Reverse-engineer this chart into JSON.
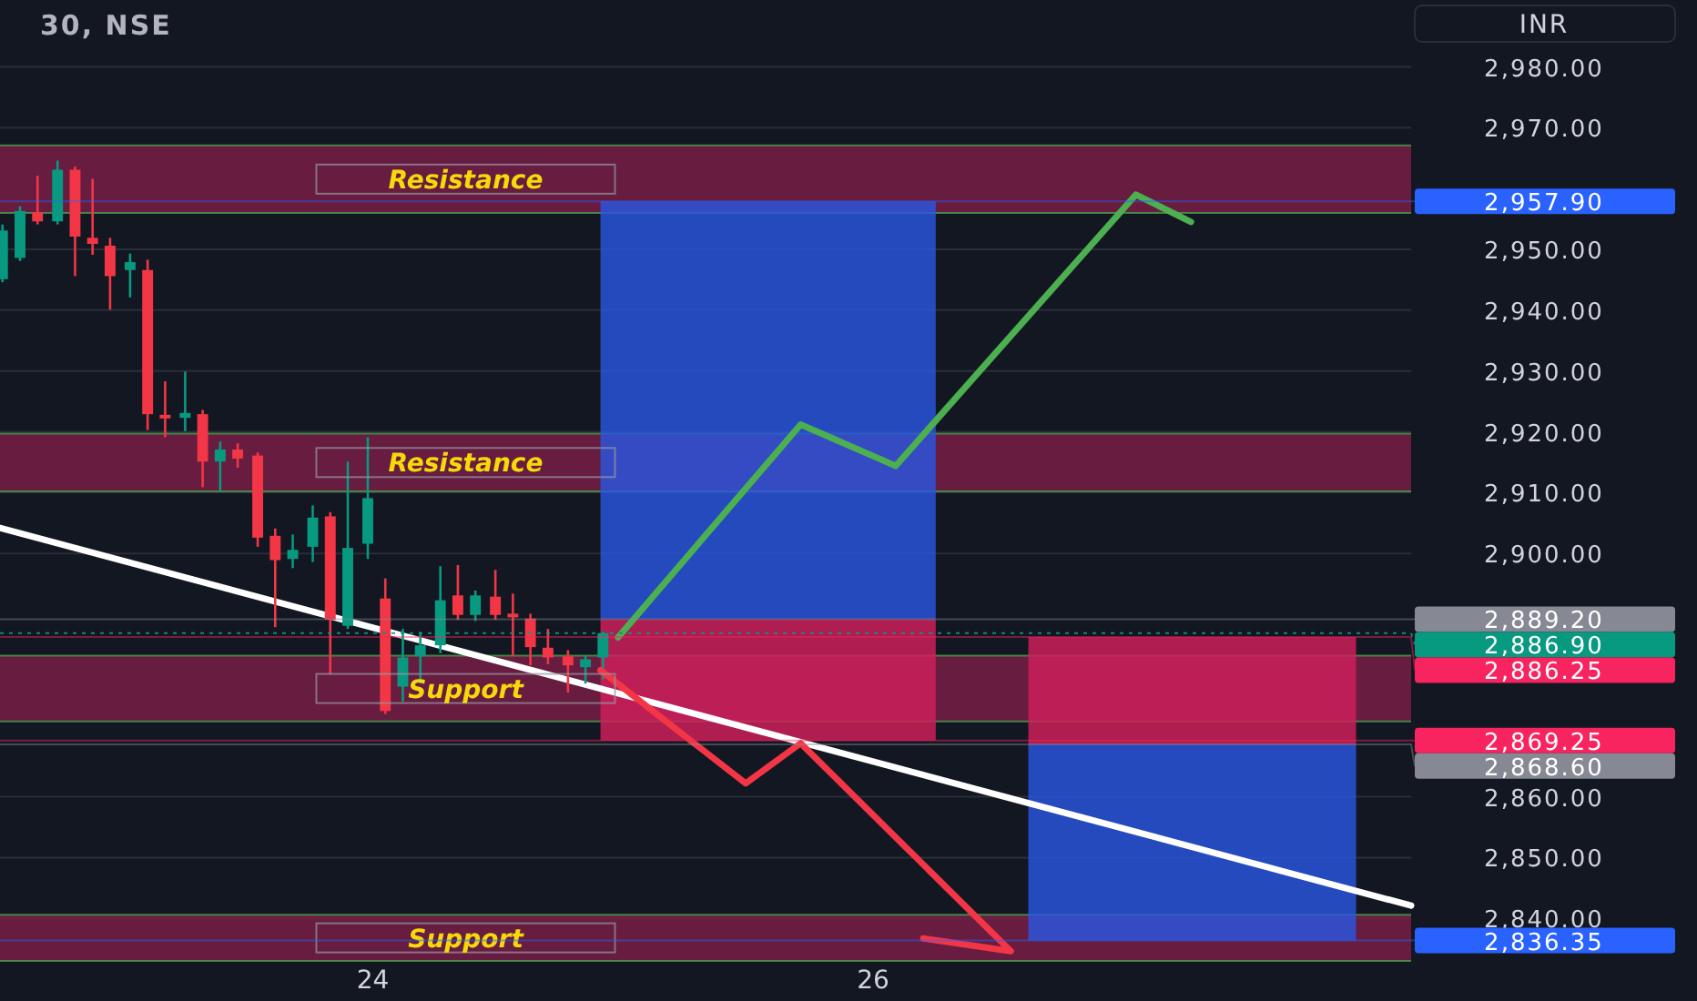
{
  "chart_data": {
    "type": "candlestick",
    "title": "30, NSE",
    "ylabel": "INR",
    "xlim": [
      22.51,
      28.15
    ],
    "xticks": [
      24,
      26
    ],
    "ylim": [
      2833,
      2991
    ],
    "yticks": [
      {
        "value": 2840,
        "label": "2,840.00"
      },
      {
        "value": 2850,
        "label": "2,850.00"
      },
      {
        "value": 2860,
        "label": "2,860.00"
      },
      {
        "value": 2900,
        "label": "2,900.00"
      },
      {
        "value": 2910,
        "label": "2,910.00"
      },
      {
        "value": 2920,
        "label": "2,920.00"
      },
      {
        "value": 2930,
        "label": "2,930.00"
      },
      {
        "value": 2940,
        "label": "2,940.00"
      },
      {
        "value": 2950,
        "label": "2,950.00"
      },
      {
        "value": 2970,
        "label": "2,970.00"
      },
      {
        "value": 2980,
        "label": "2,980.00"
      }
    ],
    "grid": "y",
    "bands": [
      {
        "axis": "y",
        "from": 2956.0,
        "to": 2967.1,
        "label": "Resistance",
        "color": "#7d1e48"
      },
      {
        "axis": "y",
        "from": 2910.2,
        "to": 2919.7,
        "label": "Resistance",
        "color": "#7d1e48"
      },
      {
        "axis": "y",
        "from": 2872.4,
        "to": 2883.2,
        "label": "Support",
        "color": "#7d1e48"
      },
      {
        "axis": "y",
        "from": 2833,
        "to": 2840.6,
        "label": "Support",
        "color": "#7d1e48"
      }
    ],
    "ref_lines": [
      {
        "axis": "y",
        "value": 2957.9,
        "label": "2,957.90",
        "color": "#2962ff"
      },
      {
        "axis": "y",
        "value": 2889.2,
        "label": "2,889.20",
        "color": "#868993"
      },
      {
        "axis": "y",
        "value": 2886.9,
        "label": "2,886.90",
        "color": "#089981",
        "line_style": "dotted"
      },
      {
        "axis": "y",
        "value": 2886.25,
        "label": "2,886.25",
        "color": "#f7245f"
      },
      {
        "axis": "y",
        "value": 2869.25,
        "label": "2,869.25",
        "color": "#f7245f"
      },
      {
        "axis": "y",
        "value": 2868.6,
        "label": "2,868.60",
        "color": "#868993"
      },
      {
        "axis": "y",
        "value": 2836.35,
        "label": "2,836.35",
        "color": "#2962ff"
      }
    ],
    "series": [
      {
        "type": "area",
        "color": "#2a56e0",
        "x": [
          24.91,
          26.25,
          26.25,
          24.91
        ],
        "values": [
          2957.9,
          2957.9,
          2889.2,
          2889.2
        ]
      },
      {
        "type": "area",
        "color": "#d21f5c",
        "x": [
          24.91,
          26.25,
          26.25,
          24.91
        ],
        "values": [
          2889.2,
          2889.2,
          2869.25,
          2869.25
        ]
      },
      {
        "type": "area",
        "color": "#d21f5c",
        "x": [
          26.62,
          27.93,
          27.93,
          26.62
        ],
        "values": [
          2886.25,
          2886.25,
          2868.6,
          2868.6
        ]
      },
      {
        "type": "area",
        "color": "#2a56e0",
        "x": [
          26.62,
          27.93,
          27.93,
          26.62
        ],
        "values": [
          2868.6,
          2868.6,
          2836.35,
          2836.35
        ]
      },
      {
        "type": "line",
        "color": "#ffffff",
        "x": [
          22.51,
          28.15
        ],
        "values": [
          2904.2,
          2842.1
        ]
      },
      {
        "x": [
          22.52,
          22.59,
          22.66,
          22.74,
          22.81,
          22.88,
          22.95,
          23.03,
          23.1,
          23.17,
          23.25,
          23.32,
          23.39,
          23.46,
          23.54,
          23.61,
          23.68,
          23.76,
          23.83,
          23.9,
          23.98,
          24.05,
          24.12,
          24.19,
          24.27,
          24.34,
          24.41,
          24.49,
          24.56,
          24.63,
          24.7,
          24.78,
          24.85,
          24.92
        ],
        "ohlc": [
          [
            2945.1,
            2954.1,
            2944.6,
            2953.1
          ],
          [
            2948.6,
            2957.1,
            2948.1,
            2956.3
          ],
          [
            2956.1,
            2962.1,
            2954.1,
            2954.6
          ],
          [
            2954.6,
            2964.6,
            2954.1,
            2963.1
          ],
          [
            2963.1,
            2963.6,
            2945.6,
            2952.1
          ],
          [
            2951.9,
            2961.6,
            2949.1,
            2950.9
          ],
          [
            2950.6,
            2951.9,
            2940.1,
            2945.6
          ],
          [
            2946.6,
            2949.3,
            2942.1,
            2947.9
          ],
          [
            2946.6,
            2948.3,
            2920.3,
            2922.9
          ],
          [
            2922.8,
            2928.3,
            2919.1,
            2922.2
          ],
          [
            2922.3,
            2929.9,
            2920.1,
            2923.1
          ],
          [
            2922.9,
            2923.6,
            2910.9,
            2915.1
          ],
          [
            2915.1,
            2918.4,
            2910.1,
            2917.1
          ],
          [
            2917.1,
            2918.1,
            2914.1,
            2915.6
          ],
          [
            2916.1,
            2916.6,
            2901.1,
            2902.6
          ],
          [
            2902.9,
            2904.1,
            2887.9,
            2898.9
          ],
          [
            2899.1,
            2903.1,
            2897.6,
            2900.6
          ],
          [
            2901.1,
            2907.9,
            2898.6,
            2905.9
          ],
          [
            2906.1,
            2906.8,
            2880.1,
            2889.1
          ],
          [
            2888.1,
            2915.1,
            2887.6,
            2900.9
          ],
          [
            2901.6,
            2919.1,
            2899.1,
            2909.1
          ],
          [
            2892.6,
            2895.9,
            2873.6,
            2874.1
          ],
          [
            2878.1,
            2887.6,
            2875.6,
            2882.9
          ],
          [
            2883.1,
            2887.1,
            2878.6,
            2884.9
          ],
          [
            2884.9,
            2897.9,
            2883.6,
            2892.3
          ],
          [
            2893.1,
            2898.1,
            2889.1,
            2889.9
          ],
          [
            2889.9,
            2893.9,
            2888.9,
            2893.1
          ],
          [
            2892.9,
            2897.3,
            2889.1,
            2889.9
          ],
          [
            2890.1,
            2893.4,
            2883.1,
            2889.5
          ],
          [
            2889.3,
            2890.1,
            2881.6,
            2884.6
          ],
          [
            2884.5,
            2887.6,
            2881.8,
            2882.9
          ],
          [
            2883.1,
            2884.1,
            2877.1,
            2881.6
          ],
          [
            2881.3,
            2883.3,
            2878.6,
            2882.6
          ],
          [
            2882.9,
            2887.1,
            2879.3,
            2886.9
          ]
        ]
      },
      {
        "type": "line",
        "color": "#4caf50",
        "x": [
          24.98,
          25.71,
          26.09,
          27.05,
          27.27
        ],
        "values": [
          2886.2,
          2921.2,
          2914.4,
          2959.0,
          2954.5
        ]
      },
      {
        "type": "line",
        "color": "#f23645",
        "x": [
          24.91,
          25.49,
          25.71,
          26.55,
          26.2
        ],
        "values": [
          2880.8,
          2862.2,
          2868.8,
          2834.6,
          2836.7
        ]
      }
    ]
  }
}
